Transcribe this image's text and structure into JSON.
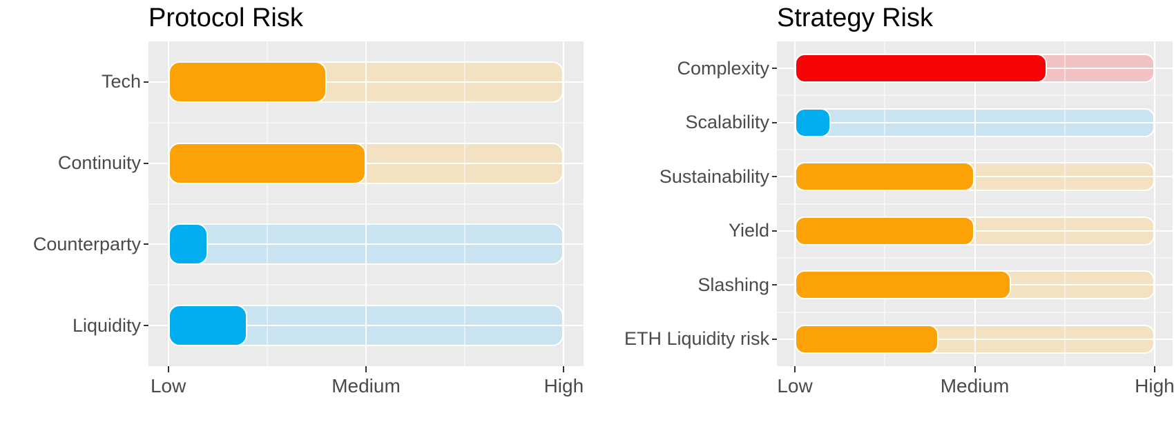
{
  "figure": {
    "description": "Two horizontal rounded-bar risk charts on white background"
  },
  "colors": {
    "orange": {
      "bar": "#FCA206",
      "track": "#F2E2C2"
    },
    "blue": {
      "bar": "#00AEEF",
      "track": "#C9E4F0"
    },
    "red": {
      "bar": "#F70506",
      "track": "#F2C2C2"
    },
    "panel_bg": "#EBEBEB",
    "gridline": "#FFFFFF",
    "axis_text": "#4A4A4A",
    "title_text": "#000000"
  },
  "chart_data": [
    {
      "type": "bar",
      "orientation": "horizontal",
      "title": "Protocol Risk",
      "categories": [
        "Tech",
        "Continuity",
        "Counterparty",
        "Liquidity"
      ],
      "values": [
        1.8,
        2.0,
        1.2,
        1.4
      ],
      "bar_colors": [
        "orange",
        "orange",
        "blue",
        "blue"
      ],
      "x_axis": {
        "tick_labels": [
          "Low",
          "Medium",
          "High"
        ],
        "tick_values": [
          1,
          2,
          3
        ],
        "range": [
          1,
          3
        ],
        "minor_tick_values": [
          1.5,
          2.5
        ]
      },
      "track": {
        "from": 1,
        "to": 3
      },
      "xlabel": "",
      "ylabel": "",
      "grid": true,
      "legend": false
    },
    {
      "type": "bar",
      "orientation": "horizontal",
      "title": "Strategy Risk",
      "categories": [
        "Complexity",
        "Scalability",
        "Sustainability",
        "Yield",
        "Slashing",
        "ETH Liquidity risk"
      ],
      "values": [
        2.4,
        1.2,
        2.0,
        2.0,
        2.2,
        1.8
      ],
      "bar_colors": [
        "red",
        "blue",
        "orange",
        "orange",
        "orange",
        "orange"
      ],
      "x_axis": {
        "tick_labels": [
          "Low",
          "Medium",
          "High"
        ],
        "tick_values": [
          1,
          2,
          3
        ],
        "range": [
          1,
          3
        ],
        "minor_tick_values": [
          1.5,
          2.5
        ]
      },
      "track": {
        "from": 1,
        "to": 3
      },
      "xlabel": "",
      "ylabel": "",
      "grid": true,
      "legend": false
    }
  ]
}
